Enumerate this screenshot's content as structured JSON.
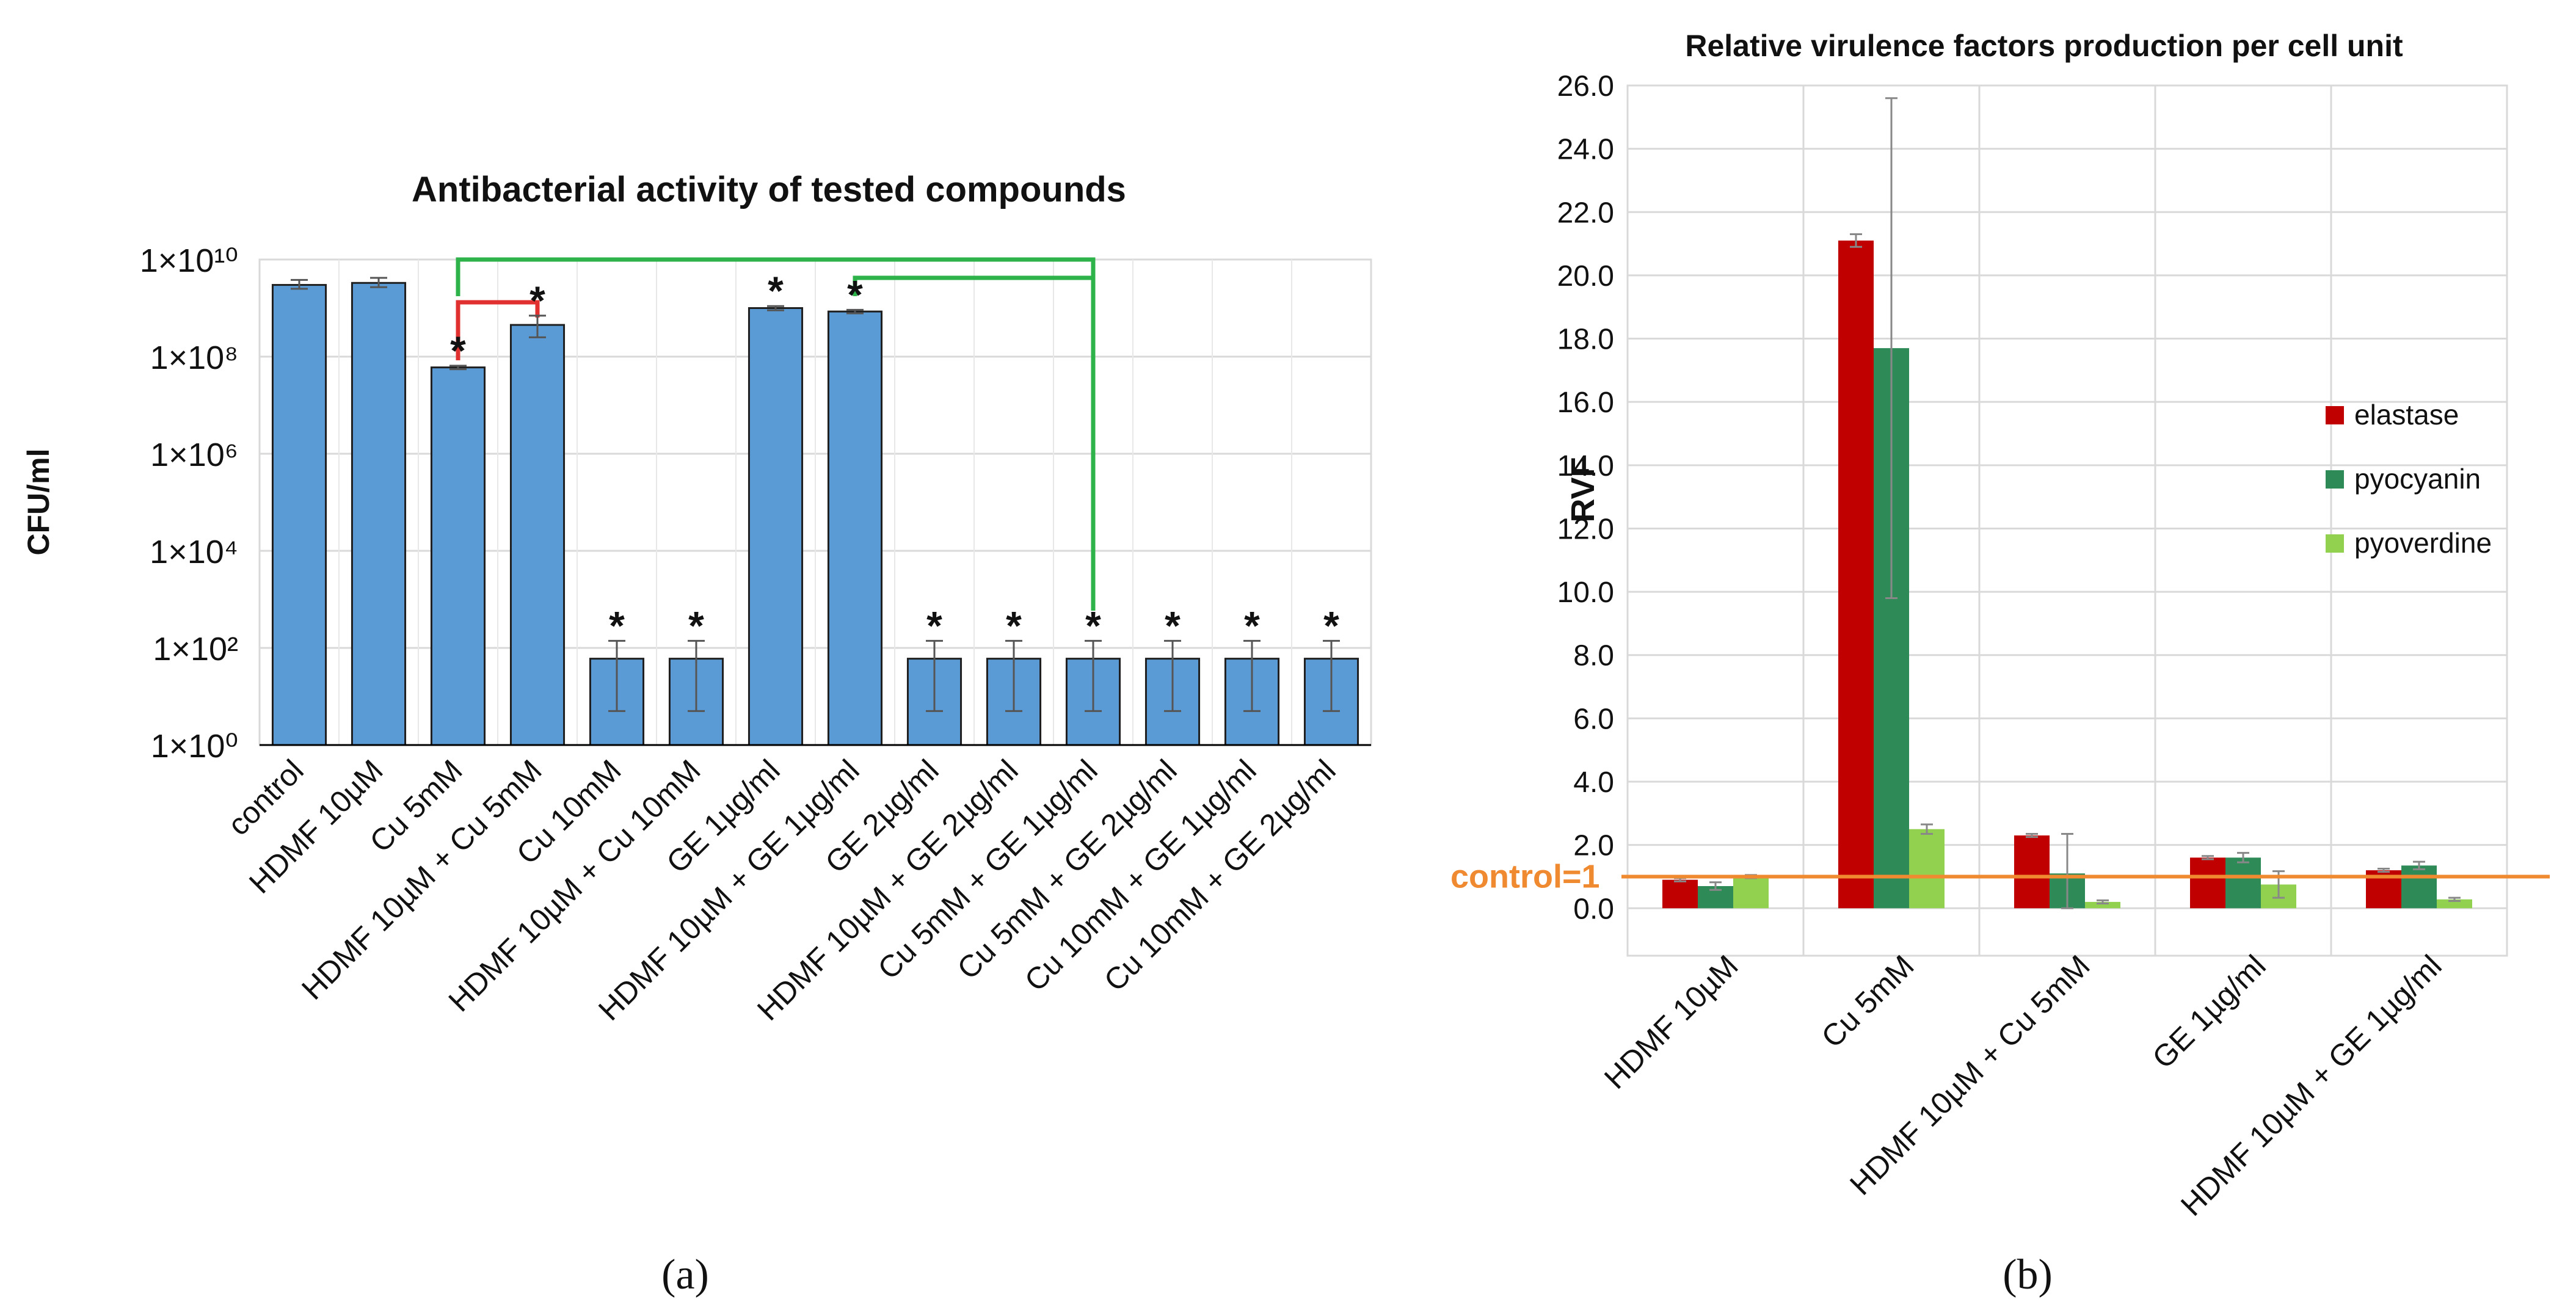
{
  "panel_labels": {
    "a": "(a)",
    "b": "(b)"
  },
  "chart_data": [
    {
      "id": "a",
      "type": "bar",
      "scale": "log",
      "title": "Antibacterial activity of  tested compounds",
      "xlabel": "",
      "ylabel": "CFU/ml",
      "ylim": [
        1,
        10000000000
      ],
      "y_tick_values": [
        1,
        100,
        10000,
        1000000,
        100000000,
        10000000000
      ],
      "y_tick_labels": [
        "1×10⁰",
        "1×10²",
        "1×10⁴",
        "1×10⁶",
        "1×10⁸",
        "1×10¹⁰"
      ],
      "grid": true,
      "bar_color": "#5b9bd5",
      "categories": [
        "control",
        "HDMF 10µM",
        "Cu 5mM",
        "HDMF 10µM + Cu 5mM",
        "Cu 10mM",
        "HDMF 10µM + Cu 10mM",
        "GE 1µg/ml",
        "HDMF 10µM + GE 1µg/ml",
        "GE 2µg/ml",
        "HDMF 10µM + GE 2µg/ml",
        "Cu 5mM + GE 1µg/ml",
        "Cu 5mM + GE 2µg/ml",
        "Cu 10mM + GE 1µg/ml",
        "Cu 10mM + GE 2µg/ml"
      ],
      "values": [
        3000000000,
        3300000000,
        60000000,
        450000000,
        60,
        60,
        1000000000,
        850000000,
        60,
        60,
        60,
        60,
        60,
        60
      ],
      "err_low": [
        2500000000,
        2700000000,
        55000000,
        250000000,
        5,
        5,
        900000000,
        780000000,
        5,
        5,
        5,
        5,
        5,
        5
      ],
      "err_high": [
        3800000000,
        4200000000,
        65000000,
        700000000,
        140,
        140,
        1100000000,
        920000000,
        140,
        140,
        140,
        140,
        140,
        140
      ],
      "significance": [
        "",
        "",
        "*",
        "*",
        "*",
        "*",
        "*",
        "*",
        "*",
        "*",
        "*",
        "*",
        "*",
        "*"
      ],
      "brackets": [
        {
          "from": 2,
          "to": 3,
          "color": "#e03030"
        },
        {
          "from": 2,
          "to": 10,
          "color": "#2db34a"
        },
        {
          "from": 7,
          "to": 10,
          "color": "#2db34a"
        }
      ]
    },
    {
      "id": "b",
      "type": "bar",
      "title": "Relative virulence factors production per cell unit",
      "xlabel": "",
      "ylabel": "RVF",
      "ylim": [
        -1.5,
        26.0
      ],
      "y_tick_values": [
        0,
        2,
        4,
        6,
        8,
        10,
        12,
        14,
        16,
        18,
        20,
        22,
        24,
        26
      ],
      "y_tick_labels": [
        "0.0",
        "2.0",
        "4.0",
        "6.0",
        "8.0",
        "10.0",
        "12.0",
        "14.0",
        "16.0",
        "18.0",
        "20.0",
        "22.0",
        "24.0",
        "26.0"
      ],
      "grid": true,
      "categories": [
        "HDMF 10µM",
        "Cu 5mM",
        "HDMF 10µM + Cu 5mM",
        "GE 1µg/ml",
        "HDMF 10µM + GE 1µg/ml"
      ],
      "series": [
        {
          "name": "elastase",
          "color": "#c00000",
          "values": [
            0.9,
            21.1,
            2.3,
            1.6,
            1.2
          ],
          "errors": [
            0.05,
            0.2,
            0.05,
            0.05,
            0.05
          ]
        },
        {
          "name": "pyocyanin",
          "color": "#2e8b57",
          "values": [
            0.7,
            17.7,
            1.1,
            1.6,
            1.35
          ],
          "errors": [
            0.12,
            7.9,
            1.25,
            0.15,
            0.12
          ]
        },
        {
          "name": "pyoverdine",
          "color": "#92d050",
          "values": [
            1.0,
            2.5,
            0.2,
            0.75,
            0.28
          ],
          "errors": [
            0.05,
            0.15,
            0.05,
            0.42,
            0.05
          ]
        }
      ],
      "legend_position": "right",
      "reference_line": {
        "value": 1.0,
        "label": "control=1",
        "color": "#f08a30"
      }
    }
  ]
}
